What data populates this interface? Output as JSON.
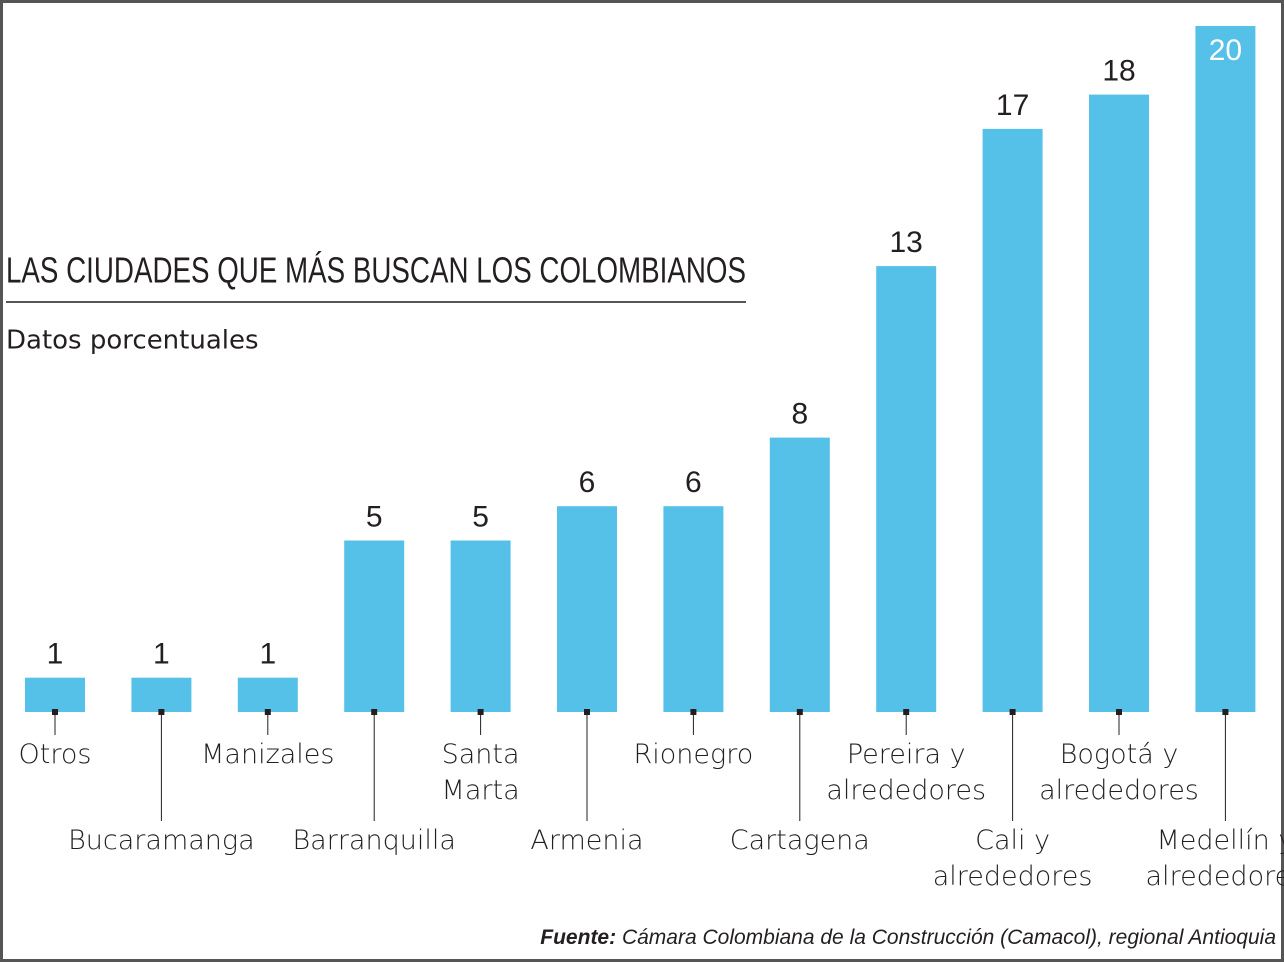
{
  "chart_data": {
    "type": "bar",
    "title": "LAS CIUDADES QUE MÁS BUSCAN LOS COLOMBIANOS",
    "subtitle": "Datos porcentuales",
    "categories": [
      "Otros",
      "Bucaramanga",
      "Manizales",
      "Barranquilla",
      "Santa Marta",
      "Armenia",
      "Rionegro",
      "Cartagena",
      "Pereira y alrededores",
      "Cali y alrededores",
      "Bogotá y alrededores",
      "Medellín y alrededores"
    ],
    "values": [
      1,
      1,
      1,
      5,
      5,
      6,
      6,
      8,
      13,
      17,
      18,
      20
    ],
    "color": "#56c1e8",
    "source_label": "Fuente:",
    "source": "Cámara Colombiana de la Construcción (Camacol), regional Antioquia"
  }
}
